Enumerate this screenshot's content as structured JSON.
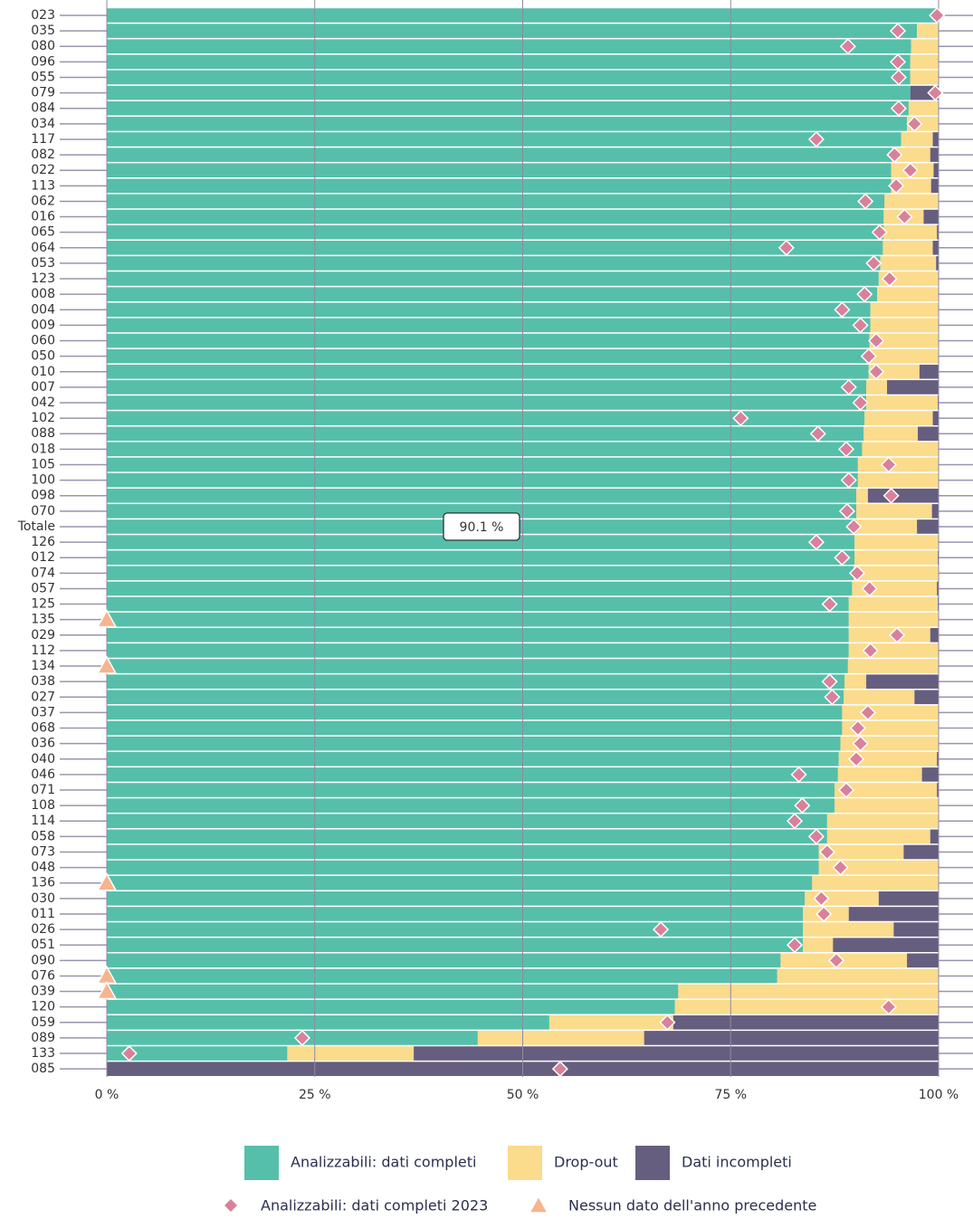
{
  "chart_data": {
    "type": "bar",
    "orientation": "horizontal",
    "stacked": true,
    "categories": [
      "023",
      "035",
      "080",
      "096",
      "055",
      "079",
      "084",
      "034",
      "117",
      "082",
      "022",
      "113",
      "062",
      "016",
      "065",
      "064",
      "053",
      "123",
      "008",
      "004",
      "009",
      "060",
      "050",
      "010",
      "007",
      "042",
      "102",
      "088",
      "018",
      "105",
      "100",
      "098",
      "070",
      "Totale",
      "126",
      "012",
      "074",
      "057",
      "125",
      "135",
      "029",
      "112",
      "134",
      "038",
      "027",
      "037",
      "068",
      "036",
      "040",
      "046",
      "071",
      "108",
      "114",
      "058",
      "073",
      "048",
      "136",
      "030",
      "011",
      "026",
      "051",
      "090",
      "076",
      "039",
      "120",
      "059",
      "089",
      "133",
      "085"
    ],
    "series": [
      {
        "name": "Analizzabili: dati completi",
        "color": "#56bfa9",
        "values": [
          100,
          97.4,
          96.7,
          96.6,
          96.6,
          96.6,
          96.4,
          96.2,
          95.5,
          94.4,
          94.3,
          94.3,
          93.5,
          93.4,
          93.4,
          93.3,
          93.0,
          92.8,
          92.6,
          91.8,
          91.8,
          91.7,
          91.6,
          91.6,
          91.3,
          91.3,
          91.1,
          91.0,
          90.8,
          90.3,
          90.3,
          90.1,
          90.1,
          90.1,
          89.9,
          89.9,
          89.8,
          89.6,
          89.2,
          89.2,
          89.2,
          89.2,
          89.1,
          88.7,
          88.6,
          88.4,
          88.4,
          88.2,
          88.0,
          87.9,
          87.5,
          87.5,
          86.6,
          86.6,
          85.6,
          85.6,
          84.8,
          83.9,
          83.7,
          83.7,
          83.7,
          81.0,
          80.6,
          68.7,
          68.3,
          53.2,
          44.6,
          21.7,
          0
        ],
        "value_labels": [
          null,
          null,
          null,
          null,
          null,
          null,
          null,
          null,
          null,
          null,
          null,
          null,
          null,
          null,
          null,
          null,
          null,
          null,
          null,
          null,
          null,
          null,
          null,
          null,
          null,
          null,
          null,
          null,
          null,
          null,
          null,
          null,
          null,
          "90.1 %",
          null,
          null,
          null,
          null,
          null,
          null,
          null,
          null,
          null,
          null,
          null,
          null,
          null,
          null,
          null,
          null,
          null,
          null,
          null,
          null,
          null,
          null,
          null,
          null,
          null,
          null,
          null,
          null,
          null,
          null,
          null,
          null,
          null,
          null,
          null
        ]
      },
      {
        "name": "Drop-out",
        "color": "#fbdb8c",
        "values": [
          0,
          2.6,
          3.3,
          3.4,
          3.4,
          0,
          3.6,
          3.8,
          3.8,
          4.6,
          5.1,
          4.8,
          6.5,
          4.8,
          6.4,
          6.0,
          6.7,
          7.2,
          7.4,
          8.2,
          8.2,
          8.3,
          8.4,
          6.1,
          2.5,
          8.6,
          8.2,
          6.5,
          9.2,
          9.7,
          9.7,
          1.4,
          9.1,
          7.3,
          10.1,
          10.0,
          10.2,
          10.2,
          10.7,
          10.8,
          9.8,
          10.8,
          10.9,
          2.6,
          8.5,
          11.6,
          11.6,
          11.8,
          11.8,
          10.1,
          12.3,
          12.5,
          13.4,
          12.4,
          10.2,
          14.4,
          15.2,
          8.9,
          5.5,
          10.9,
          3.6,
          15.2,
          19.4,
          31.3,
          31.7,
          14.9,
          20.0,
          15.2,
          0
        ]
      },
      {
        "name": "Dati incompleti",
        "color": "#665e7e",
        "values": [
          0,
          0,
          0,
          0,
          0,
          3.4,
          0,
          0,
          0.7,
          1.0,
          0.6,
          0.9,
          0,
          1.8,
          0.2,
          0.7,
          0.3,
          0,
          0,
          0,
          0,
          0,
          0,
          2.3,
          6.2,
          0.1,
          0.7,
          2.5,
          0,
          0,
          0,
          8.5,
          0.8,
          2.6,
          0,
          0.1,
          0,
          0.2,
          0.1,
          0,
          1.0,
          0,
          0,
          8.7,
          2.9,
          0,
          0,
          0,
          0.2,
          2.0,
          0.2,
          0,
          0,
          1.0,
          4.2,
          0,
          0,
          7.2,
          10.8,
          5.4,
          12.7,
          3.8,
          0,
          0,
          0,
          31.9,
          35.4,
          63.1,
          100
        ]
      }
    ],
    "markers": [
      {
        "name": "Analizzabili: dati completi 2023",
        "color": "#d9819b",
        "shape": "diamond",
        "values": [
          99.8,
          95.1,
          89.1,
          95.1,
          95.2,
          99.6,
          95.2,
          97.1,
          85.3,
          94.7,
          96.6,
          94.9,
          91.2,
          95.9,
          92.9,
          81.7,
          92.2,
          94.1,
          91.1,
          88.4,
          90.6,
          92.5,
          91.6,
          92.5,
          89.2,
          90.6,
          76.2,
          85.5,
          88.9,
          94.0,
          89.2,
          94.3,
          89.0,
          89.8,
          85.3,
          88.4,
          90.2,
          91.7,
          86.9,
          null,
          95.0,
          91.8,
          null,
          86.9,
          87.2,
          91.5,
          90.3,
          90.6,
          90.1,
          83.2,
          88.9,
          83.6,
          82.7,
          85.3,
          86.6,
          88.2,
          null,
          85.9,
          86.2,
          66.6,
          82.7,
          87.7,
          null,
          null,
          94.0,
          67.4,
          23.5,
          2.7,
          54.5
        ]
      },
      {
        "name": "Nessun dato dell'anno precedente",
        "color": "#f6b48f",
        "shape": "triangle",
        "values": [
          null,
          null,
          null,
          null,
          null,
          null,
          null,
          null,
          null,
          null,
          null,
          null,
          null,
          null,
          null,
          null,
          null,
          null,
          null,
          null,
          null,
          null,
          null,
          null,
          null,
          null,
          null,
          null,
          null,
          null,
          null,
          null,
          null,
          null,
          null,
          null,
          null,
          null,
          null,
          0,
          null,
          null,
          0,
          null,
          null,
          null,
          null,
          null,
          null,
          null,
          null,
          null,
          null,
          null,
          null,
          null,
          0,
          null,
          null,
          null,
          null,
          null,
          0,
          0,
          null,
          null,
          null,
          null,
          null
        ]
      }
    ],
    "xlim": [
      0,
      100
    ],
    "xticks": [
      {
        "value": 0,
        "label": "0 %"
      },
      {
        "value": 25,
        "label": "25 %"
      },
      {
        "value": 50,
        "label": "50 %"
      },
      {
        "value": 75,
        "label": "75 %"
      },
      {
        "value": 100,
        "label": "100 %"
      }
    ],
    "grid": true,
    "legend": "bottom"
  }
}
